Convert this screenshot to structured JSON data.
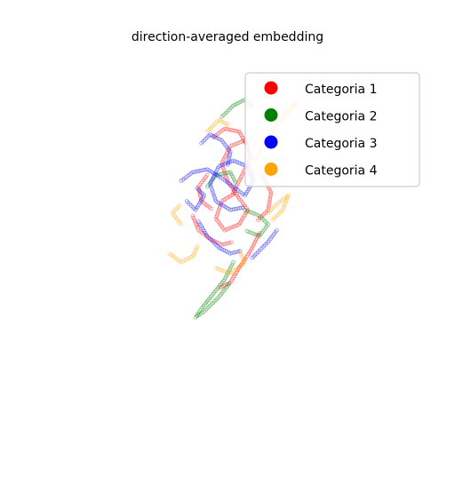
{
  "chart_data": {
    "type": "scatter",
    "title": "direction-averaged embedding",
    "xlabel": "",
    "ylabel": "",
    "axes_visible": false,
    "grid": false,
    "marker": "hollow-circle",
    "legend_placement": "top-right",
    "xlim": [
      -3,
      3
    ],
    "ylim": [
      -3,
      3
    ],
    "series": [
      {
        "name": "Categoria 1",
        "color": "#ff0000",
        "segments": [
          [
            [
              0.1,
              0.6
            ],
            [
              0.25,
              0.9
            ],
            [
              0.4,
              1.2
            ],
            [
              0.3,
              1.5
            ],
            [
              0.05,
              1.4
            ],
            [
              -0.1,
              1.1
            ],
            [
              0.0,
              0.8
            ],
            [
              0.2,
              0.5
            ],
            [
              0.35,
              0.3
            ],
            [
              0.2,
              0.05
            ],
            [
              -0.05,
              -0.05
            ],
            [
              -0.2,
              0.15
            ],
            [
              -0.1,
              0.45
            ],
            [
              0.15,
              0.6
            ]
          ],
          [
            [
              0.55,
              -0.1
            ],
            [
              0.4,
              -0.4
            ],
            [
              0.2,
              -0.7
            ],
            [
              0.05,
              -0.95
            ],
            [
              -0.15,
              -1.05
            ]
          ],
          [
            [
              -0.25,
              1.55
            ],
            [
              -0.05,
              1.7
            ],
            [
              0.2,
              1.65
            ],
            [
              0.35,
              1.4
            ]
          ],
          [
            [
              -0.6,
              0.2
            ],
            [
              -0.5,
              -0.05
            ],
            [
              -0.3,
              -0.2
            ],
            [
              -0.1,
              -0.3
            ],
            [
              0.1,
              -0.25
            ]
          ],
          [
            [
              0.6,
              0.9
            ],
            [
              0.75,
              0.6
            ],
            [
              0.7,
              0.3
            ],
            [
              0.5,
              0.1
            ]
          ],
          [
            [
              -0.35,
              0.9
            ],
            [
              -0.5,
              0.7
            ],
            [
              -0.45,
              0.45
            ],
            [
              -0.25,
              0.3
            ]
          ]
        ]
      },
      {
        "name": "Categoria 2",
        "color": "#008000",
        "segments": [
          [
            [
              0.1,
              -0.6
            ],
            [
              -0.05,
              -0.9
            ],
            [
              -0.25,
              -1.15
            ],
            [
              -0.45,
              -1.4
            ],
            [
              -0.55,
              -1.55
            ],
            [
              -0.4,
              -1.45
            ],
            [
              -0.15,
              -1.2
            ],
            [
              0.05,
              -0.95
            ]
          ],
          [
            [
              0.3,
              0.3
            ],
            [
              0.55,
              0.2
            ],
            [
              0.7,
              0.05
            ],
            [
              0.55,
              -0.15
            ],
            [
              0.3,
              -0.05
            ]
          ],
          [
            [
              -0.1,
              1.9
            ],
            [
              0.1,
              2.1
            ],
            [
              0.3,
              2.2
            ],
            [
              0.45,
              2.05
            ]
          ],
          [
            [
              -0.35,
              0.7
            ],
            [
              -0.2,
              0.9
            ],
            [
              0.05,
              0.95
            ],
            [
              0.15,
              0.75
            ]
          ]
        ]
      },
      {
        "name": "Categoria 3",
        "color": "#0000ff",
        "segments": [
          [
            [
              -0.8,
              0.8
            ],
            [
              -0.6,
              0.95
            ],
            [
              -0.35,
              1.0
            ],
            [
              -0.1,
              0.85
            ],
            [
              0.1,
              0.7
            ],
            [
              0.3,
              0.55
            ],
            [
              0.45,
              0.8
            ],
            [
              0.35,
              1.05
            ],
            [
              0.1,
              1.15
            ],
            [
              -0.15,
              1.05
            ],
            [
              -0.3,
              0.75
            ],
            [
              -0.2,
              0.45
            ],
            [
              0.05,
              0.3
            ],
            [
              0.3,
              0.35
            ]
          ],
          [
            [
              0.85,
              -0.05
            ],
            [
              0.7,
              -0.25
            ],
            [
              0.55,
              -0.4
            ],
            [
              0.4,
              -0.55
            ]
          ],
          [
            [
              -0.5,
              0.1
            ],
            [
              -0.35,
              -0.15
            ],
            [
              -0.15,
              -0.35
            ],
            [
              0.05,
              -0.45
            ],
            [
              0.25,
              -0.4
            ]
          ],
          [
            [
              -0.45,
              1.45
            ],
            [
              -0.3,
              1.6
            ],
            [
              -0.1,
              1.5
            ],
            [
              0.05,
              1.3
            ],
            [
              0.0,
              1.05
            ]
          ],
          [
            [
              -0.7,
              0.45
            ],
            [
              -0.55,
              0.3
            ],
            [
              -0.4,
              0.55
            ],
            [
              -0.55,
              0.7
            ]
          ]
        ]
      },
      {
        "name": "Categoria 4",
        "color": "#ffa500",
        "segments": [
          [
            [
              0.95,
              1.85
            ],
            [
              1.1,
              2.05
            ],
            [
              1.2,
              2.15
            ],
            [
              1.0,
              2.0
            ],
            [
              0.8,
              1.7
            ],
            [
              0.6,
              1.4
            ],
            [
              0.45,
              1.1
            ]
          ],
          [
            [
              0.7,
              0.25
            ],
            [
              0.85,
              0.4
            ],
            [
              1.05,
              0.55
            ],
            [
              0.95,
              0.3
            ],
            [
              0.75,
              0.1
            ]
          ],
          [
            [
              -1.0,
              -0.45
            ],
            [
              -0.8,
              -0.6
            ],
            [
              -0.6,
              -0.5
            ],
            [
              -0.5,
              -0.3
            ]
          ],
          [
            [
              -0.2,
              -0.7
            ],
            [
              0.05,
              -0.8
            ],
            [
              0.3,
              -0.6
            ],
            [
              0.2,
              -0.4
            ]
          ],
          [
            [
              -0.35,
              1.65
            ],
            [
              -0.15,
              1.85
            ],
            [
              0.05,
              1.75
            ]
          ],
          [
            [
              -0.8,
              0.05
            ],
            [
              -0.95,
              0.25
            ],
            [
              -0.8,
              0.4
            ]
          ]
        ]
      }
    ]
  }
}
